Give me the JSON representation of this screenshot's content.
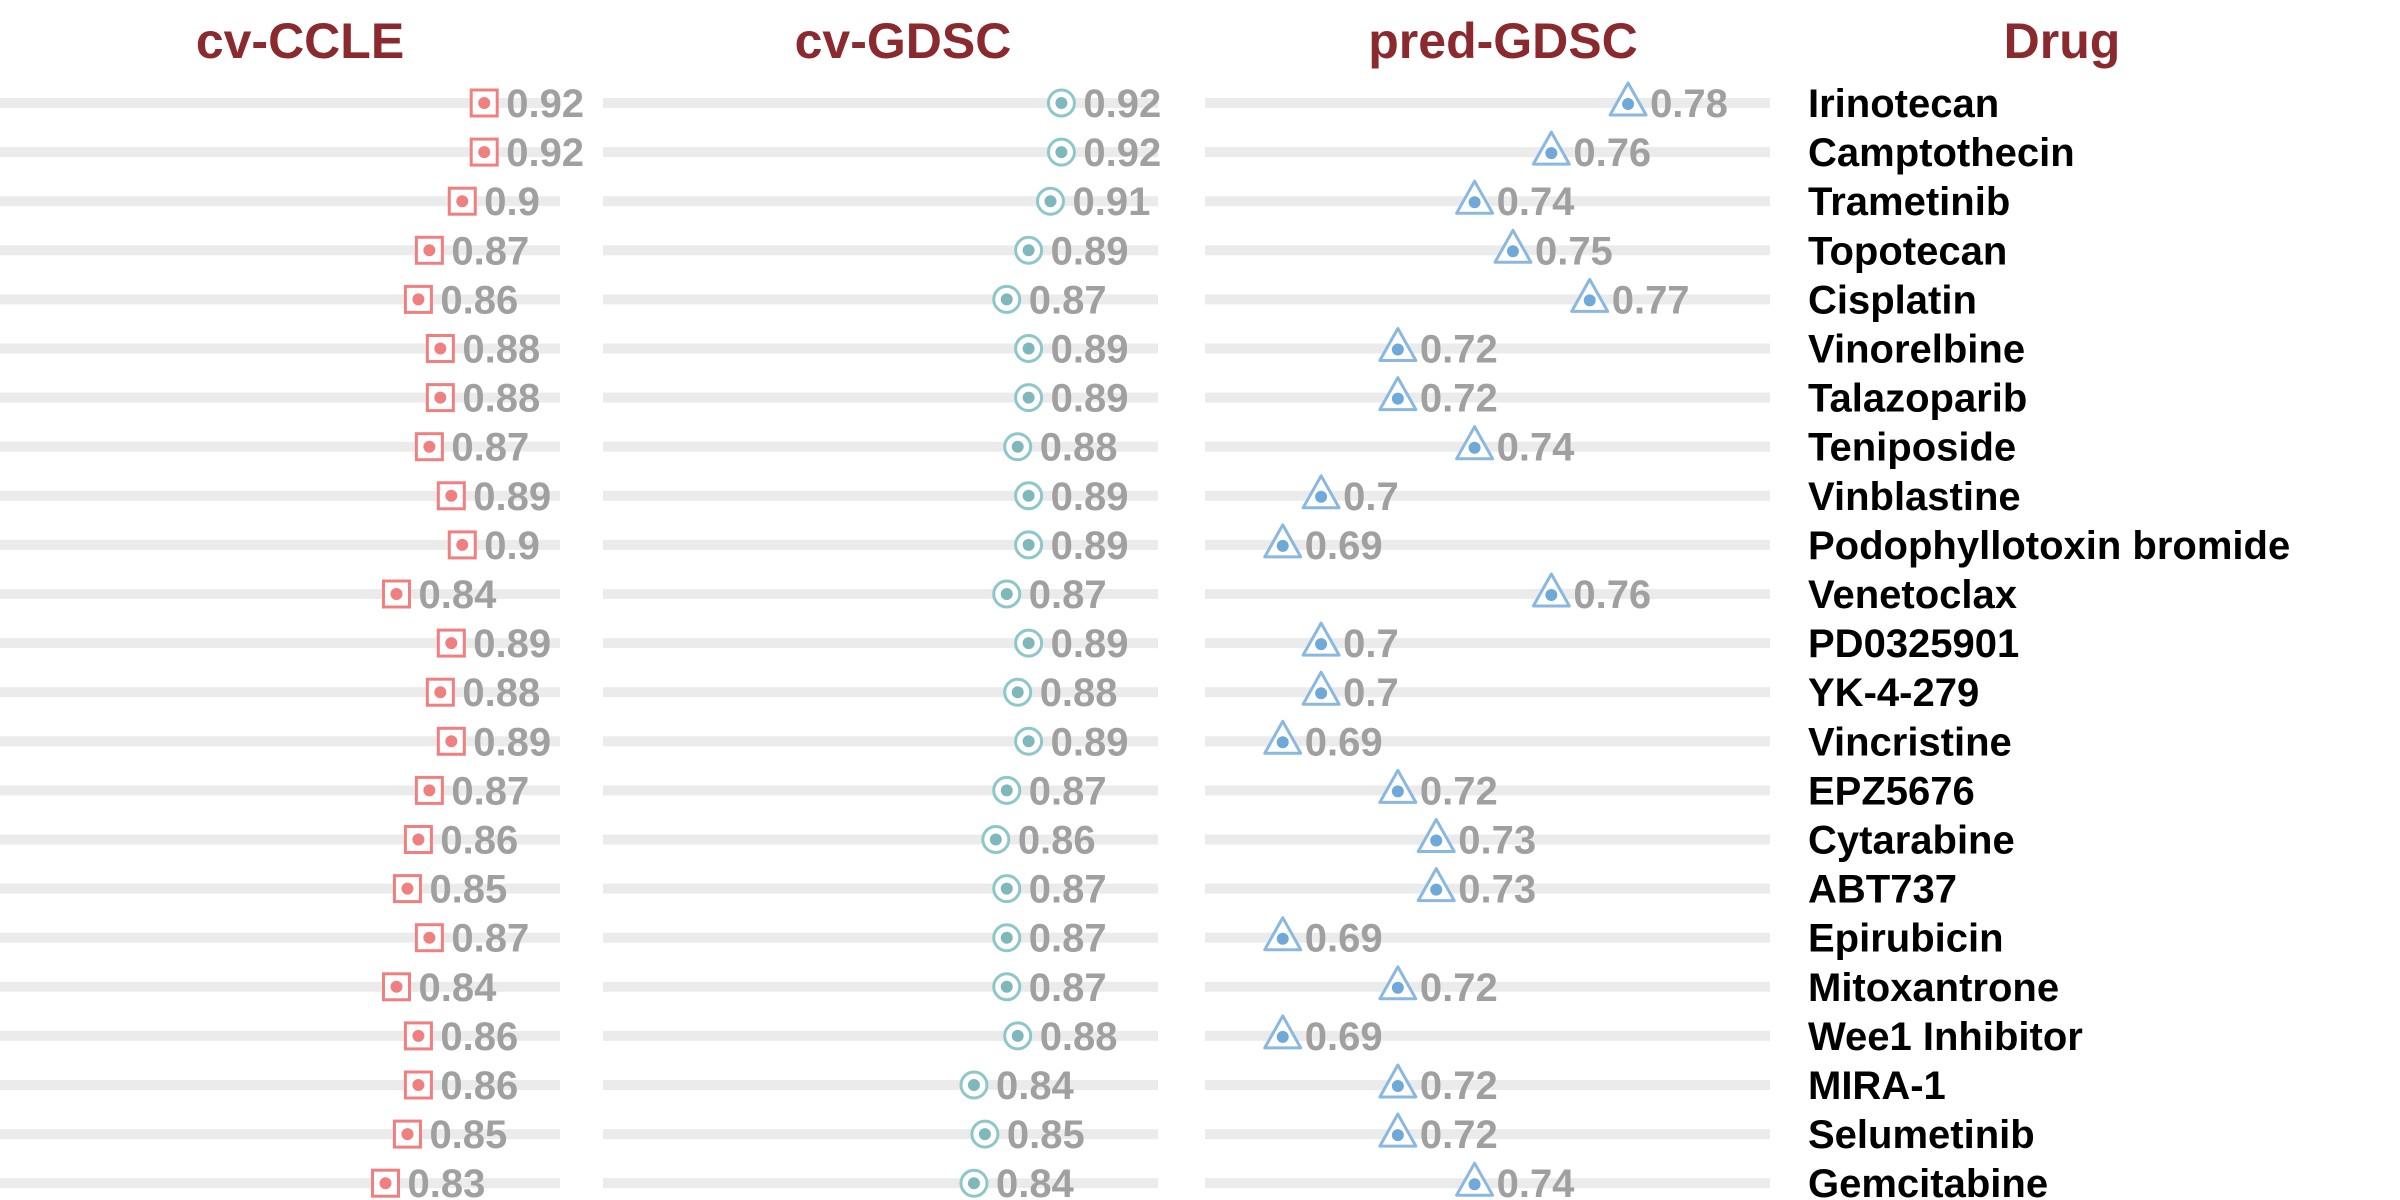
{
  "chart_data": {
    "type": "dot",
    "title": "",
    "panels": [
      {
        "name": "cv-CCLE",
        "marker": "square",
        "values": [
          0.92,
          0.92,
          0.9,
          0.87,
          0.86,
          0.88,
          0.88,
          0.87,
          0.89,
          0.9,
          0.84,
          0.89,
          0.88,
          0.89,
          0.87,
          0.86,
          0.85,
          0.87,
          0.84,
          0.86,
          0.86,
          0.85,
          0.83
        ],
        "xlim": [
          0.4,
          0.98
        ]
      },
      {
        "name": "cv-GDSC",
        "marker": "circle",
        "values": [
          0.92,
          0.92,
          0.91,
          0.89,
          0.87,
          0.89,
          0.89,
          0.88,
          0.89,
          0.89,
          0.87,
          0.89,
          0.88,
          0.89,
          0.87,
          0.86,
          0.87,
          0.87,
          0.87,
          0.88,
          0.84,
          0.85,
          0.84
        ],
        "xlim": [
          0.4,
          0.98
        ]
      },
      {
        "name": "pred-GDSC",
        "marker": "triangle",
        "values": [
          0.78,
          0.76,
          0.74,
          0.75,
          0.77,
          0.72,
          0.72,
          0.74,
          0.7,
          0.69,
          0.76,
          0.7,
          0.7,
          0.69,
          0.72,
          0.73,
          0.73,
          0.69,
          0.72,
          0.69,
          0.72,
          0.72,
          0.74
        ],
        "xlim": [
          0.4,
          0.805
        ]
      }
    ],
    "value_labels": {
      "cv-CCLE": [
        "0.92",
        "0.92",
        "0.9",
        "0.87",
        "0.86",
        "0.88",
        "0.88",
        "0.87",
        "0.89",
        "0.9",
        "0.84",
        "0.89",
        "0.88",
        "0.89",
        "0.87",
        "0.86",
        "0.85",
        "0.87",
        "0.84",
        "0.86",
        "0.86",
        "0.85",
        "0.83"
      ],
      "cv-GDSC": [
        "0.92",
        "0.92",
        "0.91",
        "0.89",
        "0.87",
        "0.89",
        "0.89",
        "0.88",
        "0.89",
        "0.89",
        "0.87",
        "0.89",
        "0.88",
        "0.89",
        "0.87",
        "0.86",
        "0.87",
        "0.87",
        "0.87",
        "0.88",
        "0.84",
        "0.85",
        "0.84"
      ],
      "pred-GDSC": [
        "0.78",
        "0.76",
        "0.74",
        "0.75",
        "0.77",
        "0.72",
        "0.72",
        "0.74",
        "0.7",
        "0.69",
        "0.76",
        "0.7",
        "0.7",
        "0.69",
        "0.72",
        "0.73",
        "0.73",
        "0.69",
        "0.72",
        "0.69",
        "0.72",
        "0.72",
        "0.74"
      ]
    },
    "categories": [
      "Irinotecan",
      "Camptothecin",
      "Trametinib",
      "Topotecan",
      "Cisplatin",
      "Vinorelbine",
      "Talazoparib",
      "Teniposide",
      "Vinblastine",
      "Podophyllotoxin bromide",
      "Venetoclax",
      "PD0325901",
      "YK-4-279",
      "Vincristine",
      "EPZ5676",
      "Cytarabine",
      "ABT737",
      "Epirubicin",
      "Mitoxantrone",
      "Wee1 Inhibitor",
      "MIRA-1",
      "Selumetinib",
      "Gemcitabine"
    ],
    "category_header": "Drug",
    "grid": false,
    "legend": "none"
  },
  "colors": {
    "title": "#8b2a2e",
    "track": "#ebebeb",
    "value_text": "#a0a0a0",
    "drug_text": "#000000",
    "cv-CCLE": "#f08080",
    "cv-GDSC": "#8ec7c9",
    "pred-GDSC": "#8ab8e0",
    "cv-CCLE-dot": "#f08080",
    "cv-GDSC-dot": "#7fb8bb",
    "pred-GDSC-dot": "#6fa9d9"
  }
}
